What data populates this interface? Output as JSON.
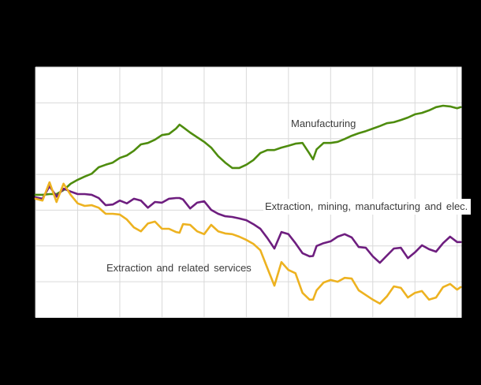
{
  "canvas": {
    "background_color": "#000000",
    "plot_background_color": "#ffffff",
    "grid_color": "#d9d9d9",
    "label_text_color": "#3c3c3c"
  },
  "chart_data": {
    "type": "line",
    "title": "",
    "xlabel": "",
    "ylabel": "",
    "note": "No axis tick labels are visible in the screenshot (plot sits on a black surround). Vertical gridlines occur every 12 months (11 lines); horizontal gridlines every 10 index points. Y values estimated from the unlabeled grid, scale 60-130.",
    "grid": true,
    "legend_position": "labels drawn directly on plot next to series",
    "xlim_months": [
      0,
      121.3
    ],
    "x_grid_step_months": 12,
    "ylim": [
      60,
      130
    ],
    "y_grid_step": 10,
    "x_months": [
      0,
      2,
      4,
      6,
      8,
      10,
      12,
      14,
      16,
      18,
      20,
      22,
      24,
      26,
      28,
      30,
      32,
      34,
      36,
      38,
      40,
      41,
      42,
      44,
      46,
      48,
      50,
      52,
      54,
      56,
      58,
      60,
      62,
      64,
      66,
      68,
      70,
      72,
      74,
      76,
      78,
      79,
      80,
      82,
      84,
      86,
      88,
      90,
      92,
      94,
      96,
      98,
      100,
      102,
      104,
      106,
      108,
      110,
      112,
      114,
      116,
      118,
      120,
      121
    ],
    "series": [
      {
        "name": "Manufacturing",
        "color": "#4e8c0e",
        "values": [
          94.3,
          94.3,
          94.5,
          94.5,
          95.6,
          97.4,
          98.5,
          99.4,
          100.2,
          102.0,
          102.7,
          103.3,
          104.6,
          105.3,
          106.6,
          108.4,
          108.8,
          109.7,
          111.0,
          111.3,
          112.8,
          113.9,
          113.2,
          111.7,
          110.4,
          109.1,
          107.5,
          105.1,
          103.3,
          101.8,
          101.8,
          102.7,
          104.0,
          106.0,
          106.8,
          106.8,
          107.5,
          108.0,
          108.6,
          108.8,
          105.8,
          104.2,
          107.0,
          108.8,
          108.8,
          109.1,
          109.9,
          110.8,
          111.5,
          112.1,
          112.8,
          113.5,
          114.3,
          114.6,
          115.2,
          115.9,
          116.8,
          117.2,
          117.9,
          118.8,
          119.2,
          119.0,
          118.5,
          118.8
        ]
      },
      {
        "name": "Extraction, mining, manufacturing and elec.",
        "color": "#6e1e7f",
        "values": [
          93.6,
          93.2,
          96.7,
          93.8,
          96.0,
          95.2,
          94.5,
          94.5,
          94.3,
          93.4,
          91.4,
          91.6,
          92.7,
          91.9,
          93.2,
          92.7,
          90.7,
          92.3,
          92.1,
          93.2,
          93.4,
          93.4,
          93.0,
          90.5,
          92.1,
          92.5,
          90.1,
          89.0,
          88.3,
          88.1,
          87.7,
          87.2,
          86.1,
          84.8,
          82.2,
          79.3,
          83.9,
          83.3,
          80.8,
          78.0,
          77.1,
          77.2,
          80.0,
          80.8,
          81.3,
          82.6,
          83.3,
          82.4,
          79.7,
          79.5,
          77.1,
          75.3,
          77.3,
          79.3,
          79.5,
          76.6,
          78.2,
          80.2,
          79.1,
          78.4,
          80.8,
          82.6,
          81.1,
          81.1
        ]
      },
      {
        "name": "Extraction and related services",
        "color": "#edb220",
        "values": [
          93.2,
          92.7,
          97.8,
          92.3,
          97.4,
          94.3,
          91.9,
          91.2,
          91.4,
          90.7,
          89.0,
          89.0,
          88.8,
          87.4,
          85.2,
          84.1,
          86.3,
          86.8,
          84.8,
          84.8,
          83.9,
          83.7,
          86.1,
          85.9,
          84.1,
          83.3,
          85.9,
          84.1,
          83.5,
          83.3,
          82.6,
          81.7,
          80.6,
          78.8,
          73.8,
          68.9,
          75.5,
          73.3,
          72.4,
          66.9,
          65.0,
          65.0,
          67.6,
          69.8,
          70.5,
          70.0,
          71.1,
          70.9,
          67.6,
          66.3,
          65.0,
          63.9,
          65.9,
          68.7,
          68.3,
          65.6,
          66.9,
          67.4,
          65.0,
          65.6,
          68.5,
          69.4,
          67.8,
          68.5
        ]
      }
    ]
  }
}
